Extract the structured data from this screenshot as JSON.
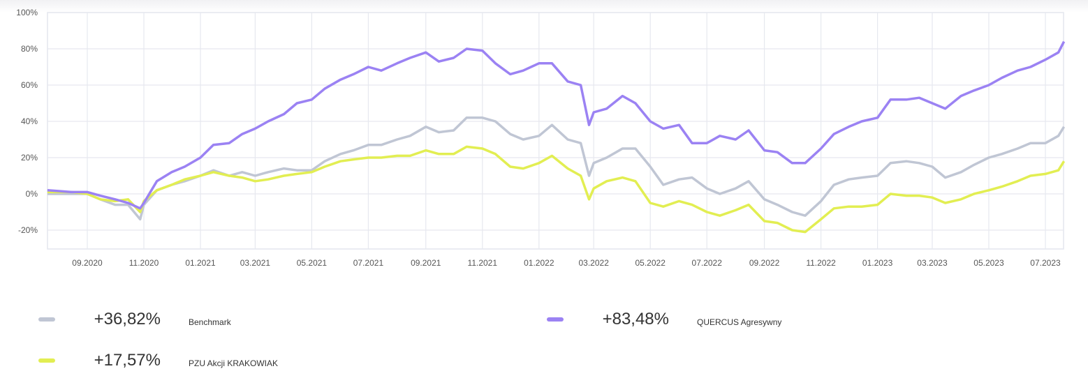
{
  "chart_data": {
    "type": "line",
    "ylim": [
      -30,
      100
    ],
    "y_ticks": [
      "100%",
      "80%",
      "60%",
      "40%",
      "20%",
      "0%",
      "-20%"
    ],
    "y_tick_values": [
      100,
      80,
      60,
      40,
      20,
      0,
      -20
    ],
    "x_ticks": [
      "09.2020",
      "11.2020",
      "01.2021",
      "03.2021",
      "05.2021",
      "07.2021",
      "09.2021",
      "11.2021",
      "01.2022",
      "03.2022",
      "05.2022",
      "07.2022",
      "09.2022",
      "11.2022",
      "01.2023",
      "03.2023",
      "05.2023",
      "07.2023"
    ],
    "x_tick_dates": [
      "2020-09-01",
      "2020-11-01",
      "2021-01-01",
      "2021-03-01",
      "2021-05-01",
      "2021-07-01",
      "2021-09-01",
      "2021-11-01",
      "2022-01-01",
      "2022-03-01",
      "2022-05-01",
      "2022-07-01",
      "2022-09-01",
      "2022-11-01",
      "2023-01-01",
      "2023-03-01",
      "2023-05-01",
      "2023-07-01"
    ],
    "grid": true,
    "legend_placement": "bottom",
    "x": [
      "2020-07-20",
      "2020-08-15",
      "2020-09-01",
      "2020-09-15",
      "2020-10-01",
      "2020-10-15",
      "2020-10-28",
      "2020-11-01",
      "2020-11-15",
      "2020-12-01",
      "2020-12-15",
      "2021-01-01",
      "2021-01-15",
      "2021-02-01",
      "2021-02-15",
      "2021-03-01",
      "2021-03-15",
      "2021-04-01",
      "2021-04-15",
      "2021-05-01",
      "2021-05-15",
      "2021-06-01",
      "2021-06-15",
      "2021-07-01",
      "2021-07-15",
      "2021-08-01",
      "2021-08-15",
      "2021-09-01",
      "2021-09-15",
      "2021-10-01",
      "2021-10-15",
      "2021-11-01",
      "2021-11-15",
      "2021-12-01",
      "2021-12-15",
      "2022-01-01",
      "2022-01-15",
      "2022-02-01",
      "2022-02-15",
      "2022-02-24",
      "2022-03-01",
      "2022-03-15",
      "2022-04-01",
      "2022-04-15",
      "2022-05-01",
      "2022-05-15",
      "2022-06-01",
      "2022-06-15",
      "2022-07-01",
      "2022-07-15",
      "2022-08-01",
      "2022-08-15",
      "2022-09-01",
      "2022-09-15",
      "2022-10-01",
      "2022-10-15",
      "2022-11-01",
      "2022-11-15",
      "2022-12-01",
      "2022-12-15",
      "2023-01-01",
      "2023-01-15",
      "2023-02-01",
      "2023-02-15",
      "2023-03-01",
      "2023-03-15",
      "2023-04-01",
      "2023-04-15",
      "2023-05-01",
      "2023-05-15",
      "2023-06-01",
      "2023-06-15",
      "2023-07-01",
      "2023-07-15",
      "2023-07-21"
    ],
    "series": [
      {
        "name": "Benchmark",
        "color": "#c0c6d4",
        "return": "+36,82%",
        "values": [
          0,
          0,
          0,
          -3,
          -6,
          -6,
          -14,
          -6,
          2,
          5,
          7,
          10,
          13,
          10,
          12,
          10,
          12,
          14,
          13,
          13,
          18,
          22,
          24,
          27,
          27,
          30,
          32,
          37,
          34,
          35,
          42,
          42,
          40,
          33,
          30,
          32,
          38,
          30,
          28,
          10,
          17,
          20,
          25,
          25,
          15,
          5,
          8,
          9,
          3,
          0,
          3,
          7,
          -3,
          -6,
          -10,
          -12,
          -4,
          5,
          8,
          9,
          10,
          17,
          18,
          17,
          15,
          9,
          12,
          16,
          20,
          22,
          25,
          28,
          28,
          32,
          37
        ]
      },
      {
        "name": "PZU Akcji KRAKOWIAK",
        "color": "#e2ee52",
        "return": "+17,57%",
        "values": [
          1,
          1,
          0,
          -3,
          -4,
          -3,
          -10,
          -4,
          2,
          5,
          8,
          10,
          12,
          10,
          9,
          7,
          8,
          10,
          11,
          12,
          15,
          18,
          19,
          20,
          20,
          21,
          21,
          24,
          22,
          22,
          26,
          25,
          22,
          15,
          14,
          17,
          21,
          14,
          10,
          -3,
          3,
          7,
          9,
          7,
          -5,
          -7,
          -4,
          -6,
          -10,
          -12,
          -9,
          -6,
          -15,
          -16,
          -20,
          -21,
          -14,
          -8,
          -7,
          -7,
          -6,
          0,
          -1,
          -1,
          -2,
          -5,
          -3,
          0,
          2,
          4,
          7,
          10,
          11,
          13,
          18
        ]
      },
      {
        "name": "QUERCUS Agresywny",
        "color": "#9b82f3",
        "return": "+83,48%",
        "values": [
          2,
          1,
          1,
          -1,
          -3,
          -5,
          -8,
          -5,
          7,
          12,
          15,
          20,
          27,
          28,
          33,
          36,
          40,
          44,
          50,
          52,
          58,
          63,
          66,
          70,
          68,
          72,
          75,
          78,
          73,
          75,
          80,
          79,
          72,
          66,
          68,
          72,
          72,
          62,
          60,
          38,
          45,
          47,
          54,
          50,
          40,
          36,
          38,
          28,
          28,
          32,
          30,
          35,
          24,
          23,
          17,
          17,
          25,
          33,
          37,
          40,
          42,
          52,
          52,
          53,
          50,
          47,
          54,
          57,
          60,
          64,
          68,
          70,
          74,
          78,
          84
        ]
      }
    ]
  },
  "legend": {
    "benchmark": {
      "value": "+36,82%",
      "label": "Benchmark"
    },
    "quercus": {
      "value": "+83,48%",
      "label": "QUERCUS Agresywny"
    },
    "pzu": {
      "value": "+17,57%",
      "label": "PZU Akcji KRAKOWIAK"
    }
  }
}
